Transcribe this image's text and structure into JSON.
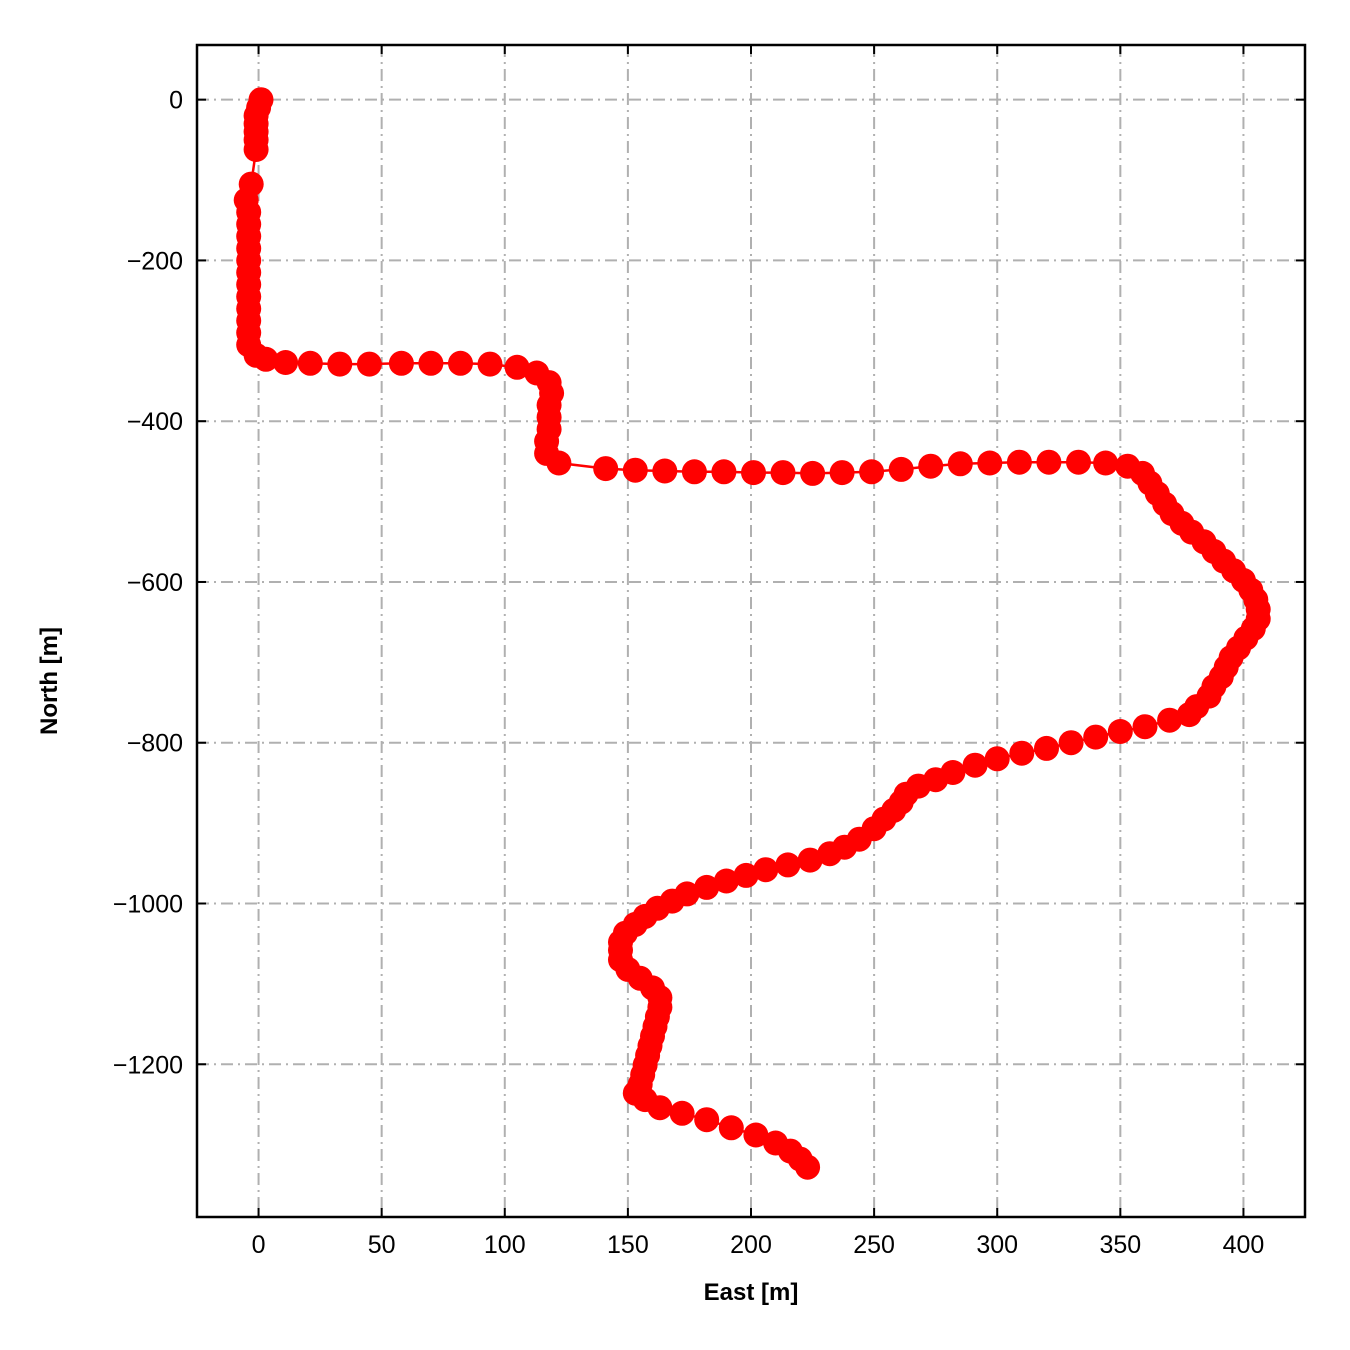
{
  "chart_data": {
    "type": "line",
    "title": "",
    "xlabel": "East [m]",
    "ylabel": "North [m]",
    "xlim": [
      -25,
      425
    ],
    "ylim": [
      -1390,
      68
    ],
    "xticks": [
      0,
      50,
      100,
      150,
      200,
      250,
      300,
      350,
      400
    ],
    "yticks": [
      0,
      -200,
      -400,
      -600,
      -800,
      -1000,
      -1200
    ],
    "grid": true,
    "legend": "none",
    "series": [
      {
        "color": "#ff0000",
        "marker": "circle",
        "points": [
          [
            1,
            0
          ],
          [
            0,
            -10
          ],
          [
            -1,
            -20
          ],
          [
            -1,
            -30
          ],
          [
            -1,
            -40
          ],
          [
            -1,
            -50
          ],
          [
            -1,
            -62
          ],
          [
            -3,
            -105
          ],
          [
            -5,
            -125
          ],
          [
            -4,
            -140
          ],
          [
            -4,
            -155
          ],
          [
            -4,
            -170
          ],
          [
            -4,
            -185
          ],
          [
            -4,
            -200
          ],
          [
            -4,
            -215
          ],
          [
            -4,
            -230
          ],
          [
            -4,
            -245
          ],
          [
            -4,
            -260
          ],
          [
            -4,
            -275
          ],
          [
            -4,
            -290
          ],
          [
            -4,
            -305
          ],
          [
            -1,
            -318
          ],
          [
            3,
            -323
          ],
          [
            11,
            -327
          ],
          [
            21,
            -328
          ],
          [
            33,
            -329
          ],
          [
            45,
            -329
          ],
          [
            58,
            -328
          ],
          [
            70,
            -328
          ],
          [
            82,
            -328
          ],
          [
            94,
            -329
          ],
          [
            105,
            -333
          ],
          [
            113,
            -340
          ],
          [
            118,
            -352
          ],
          [
            119,
            -365
          ],
          [
            118,
            -380
          ],
          [
            118,
            -395
          ],
          [
            118,
            -410
          ],
          [
            117,
            -425
          ],
          [
            117,
            -440
          ],
          [
            122,
            -452
          ],
          [
            141,
            -459
          ],
          [
            153,
            -461
          ],
          [
            165,
            -462
          ],
          [
            177,
            -463
          ],
          [
            189,
            -463
          ],
          [
            201,
            -464
          ],
          [
            213,
            -464
          ],
          [
            225,
            -465
          ],
          [
            237,
            -464
          ],
          [
            249,
            -463
          ],
          [
            261,
            -460
          ],
          [
            273,
            -456
          ],
          [
            285,
            -453
          ],
          [
            297,
            -452
          ],
          [
            309,
            -451
          ],
          [
            321,
            -451
          ],
          [
            333,
            -451
          ],
          [
            344,
            -452
          ],
          [
            353,
            -456
          ],
          [
            359,
            -465
          ],
          [
            362,
            -477
          ],
          [
            365,
            -490
          ],
          [
            368,
            -503
          ],
          [
            371,
            -515
          ],
          [
            375,
            -527
          ],
          [
            379,
            -538
          ],
          [
            384,
            -550
          ],
          [
            388,
            -562
          ],
          [
            392,
            -574
          ],
          [
            396,
            -586
          ],
          [
            400,
            -598
          ],
          [
            403,
            -610
          ],
          [
            405,
            -622
          ],
          [
            406,
            -634
          ],
          [
            406,
            -646
          ],
          [
            404,
            -658
          ],
          [
            401,
            -670
          ],
          [
            398,
            -682
          ],
          [
            395,
            -694
          ],
          [
            393,
            -706
          ],
          [
            391,
            -718
          ],
          [
            388,
            -730
          ],
          [
            386,
            -742
          ],
          [
            381,
            -755
          ],
          [
            378,
            -765
          ],
          [
            370,
            -772
          ],
          [
            360,
            -780
          ],
          [
            350,
            -786
          ],
          [
            340,
            -793
          ],
          [
            330,
            -800
          ],
          [
            320,
            -807
          ],
          [
            310,
            -813
          ],
          [
            300,
            -820
          ],
          [
            291,
            -828
          ],
          [
            282,
            -837
          ],
          [
            275,
            -846
          ],
          [
            268,
            -854
          ],
          [
            263,
            -864
          ],
          [
            261,
            -874
          ],
          [
            258,
            -884
          ],
          [
            254,
            -895
          ],
          [
            250,
            -907
          ],
          [
            244,
            -920
          ],
          [
            238,
            -930
          ],
          [
            232,
            -938
          ],
          [
            224,
            -946
          ],
          [
            215,
            -952
          ],
          [
            206,
            -958
          ],
          [
            198,
            -965
          ],
          [
            190,
            -972
          ],
          [
            182,
            -980
          ],
          [
            174,
            -988
          ],
          [
            168,
            -997
          ],
          [
            162,
            -1006
          ],
          [
            157,
            -1016
          ],
          [
            153,
            -1026
          ],
          [
            149,
            -1037
          ],
          [
            147,
            -1048
          ],
          [
            147,
            -1058
          ],
          [
            147,
            -1070
          ],
          [
            150,
            -1082
          ],
          [
            155,
            -1093
          ],
          [
            160,
            -1105
          ],
          [
            163,
            -1117
          ],
          [
            163,
            -1129
          ],
          [
            162,
            -1141
          ],
          [
            161,
            -1153
          ],
          [
            160,
            -1165
          ],
          [
            159,
            -1177
          ],
          [
            158,
            -1189
          ],
          [
            157,
            -1201
          ],
          [
            156,
            -1213
          ],
          [
            155,
            -1225
          ],
          [
            153,
            -1236
          ],
          [
            157,
            -1244
          ],
          [
            163,
            -1254
          ],
          [
            172,
            -1261
          ],
          [
            182,
            -1269
          ],
          [
            192,
            -1279
          ],
          [
            202,
            -1288
          ],
          [
            210,
            -1298
          ],
          [
            216,
            -1308
          ],
          [
            220,
            -1318
          ],
          [
            223,
            -1328
          ]
        ]
      }
    ]
  }
}
